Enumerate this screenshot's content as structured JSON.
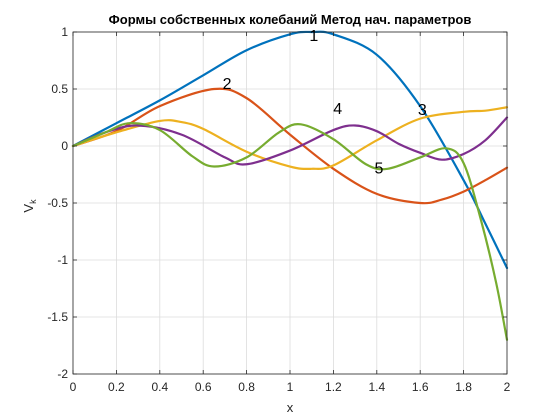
{
  "chart_data": {
    "type": "line",
    "title": "Формы собственных колебаний Метод нач. параметров",
    "xlabel": "x",
    "ylabel": {
      "base": "V",
      "subscript": "k"
    },
    "xlim": [
      0,
      2
    ],
    "ylim": [
      -2,
      1
    ],
    "grid": true,
    "xticks": [
      0,
      0.2,
      0.4,
      0.6,
      0.8,
      1,
      1.2,
      1.4,
      1.6,
      1.8,
      2
    ],
    "xtick_labels": [
      "0",
      "0.2",
      "0.4",
      "0.6",
      "0.8",
      "1",
      "1.2",
      "1.4",
      "1.6",
      "1.8",
      "2"
    ],
    "yticks": [
      -2,
      -1.5,
      -1,
      -0.5,
      0,
      0.5,
      1
    ],
    "ytick_labels": [
      "-2",
      "-1.5",
      "-1",
      "-0.5",
      "0",
      "0.5",
      "1"
    ],
    "series": [
      {
        "name": "1",
        "color": "#0072BD",
        "x": [
          0,
          0.2,
          0.4,
          0.6,
          0.8,
          1.0,
          1.1,
          1.2,
          1.4,
          1.6,
          1.8,
          1.9,
          2.0
        ],
        "y": [
          0,
          0.2,
          0.4,
          0.62,
          0.84,
          0.98,
          1.0,
          0.98,
          0.8,
          0.35,
          -0.3,
          -0.68,
          -1.07
        ]
      },
      {
        "name": "2",
        "color": "#D95319",
        "x": [
          0,
          0.2,
          0.4,
          0.65,
          0.8,
          1.0,
          1.2,
          1.4,
          1.6,
          1.7,
          1.8,
          1.9,
          2.0
        ],
        "y": [
          0,
          0.13,
          0.35,
          0.5,
          0.42,
          0.1,
          -0.2,
          -0.42,
          -0.5,
          -0.47,
          -0.4,
          -0.3,
          -0.19
        ]
      },
      {
        "name": "3",
        "color": "#EDB120",
        "x": [
          0,
          0.2,
          0.4,
          0.5,
          0.6,
          0.8,
          1.0,
          1.1,
          1.2,
          1.4,
          1.6,
          1.8,
          1.9,
          2.0
        ],
        "y": [
          0,
          0.12,
          0.22,
          0.21,
          0.15,
          -0.05,
          -0.18,
          -0.2,
          -0.17,
          0.05,
          0.24,
          0.3,
          0.31,
          0.34
        ]
      },
      {
        "name": "4",
        "color": "#7E2F8E",
        "x": [
          0,
          0.15,
          0.3,
          0.5,
          0.7,
          0.8,
          1.0,
          1.2,
          1.3,
          1.4,
          1.5,
          1.6,
          1.7,
          1.8,
          1.9,
          2.0
        ],
        "y": [
          0,
          0.12,
          0.18,
          0.1,
          -0.1,
          -0.16,
          -0.04,
          0.14,
          0.18,
          0.13,
          0.02,
          -0.06,
          -0.12,
          -0.07,
          0.05,
          0.25
        ]
      },
      {
        "name": "5",
        "color": "#77AC30",
        "x": [
          0,
          0.15,
          0.26,
          0.4,
          0.55,
          0.65,
          0.8,
          0.95,
          1.05,
          1.2,
          1.35,
          1.45,
          1.6,
          1.72,
          1.8,
          1.88,
          1.95,
          2.0
        ],
        "y": [
          0,
          0.12,
          0.2,
          0.14,
          -0.09,
          -0.18,
          -0.1,
          0.12,
          0.19,
          0.06,
          -0.16,
          -0.2,
          -0.1,
          -0.02,
          -0.15,
          -0.65,
          -1.2,
          -1.7
        ]
      }
    ],
    "annotations": [
      {
        "text": "1",
        "x": 1.11,
        "y": 0.92
      },
      {
        "text": "2",
        "x": 0.71,
        "y": 0.5
      },
      {
        "text": "3",
        "x": 1.61,
        "y": 0.27
      },
      {
        "text": "4",
        "x": 1.22,
        "y": 0.28
      },
      {
        "text": "5",
        "x": 1.41,
        "y": -0.24
      }
    ]
  }
}
